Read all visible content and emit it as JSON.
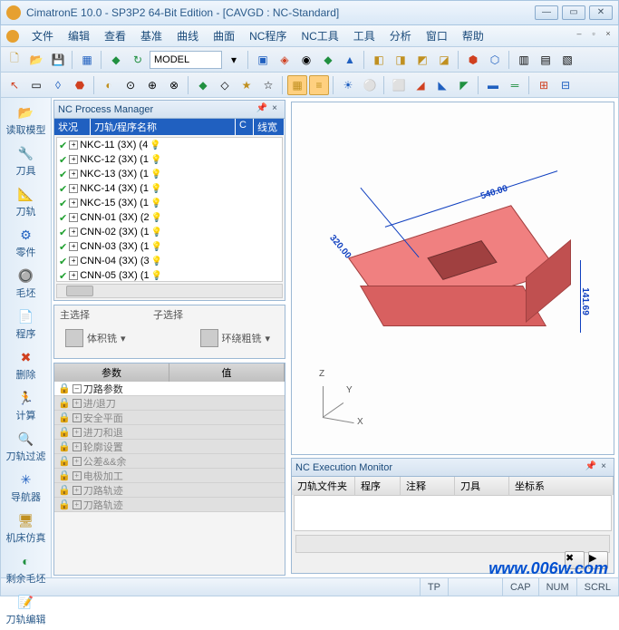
{
  "title": "CimatronE 10.0 - SP3P2 64-Bit Edition - [CAVGD : NC-Standard]",
  "menu": [
    "文件",
    "编辑",
    "查看",
    "基准",
    "曲线",
    "曲面",
    "NC程序",
    "NC工具",
    "工具",
    "分析",
    "窗口",
    "帮助"
  ],
  "combo": "MODEL",
  "vtools": [
    {
      "icon": "📂",
      "label": "读取模型",
      "cls": "ic-c1"
    },
    {
      "icon": "🔧",
      "label": "刀具",
      "cls": "ic-c1"
    },
    {
      "icon": "📐",
      "label": "刀轨",
      "cls": "ic-c1"
    },
    {
      "icon": "⚙",
      "label": "零件",
      "cls": "ic-c3"
    },
    {
      "icon": "🔘",
      "label": "毛坯",
      "cls": "ic-c2"
    },
    {
      "icon": "📄",
      "label": "程序",
      "cls": "ic-c1"
    },
    {
      "icon": "✖",
      "label": "删除",
      "cls": "ic-c2"
    },
    {
      "icon": "🏃",
      "label": "计算",
      "cls": "ic-c1"
    },
    {
      "icon": "🔍",
      "label": "刀轨过滤",
      "cls": "ic-c2"
    },
    {
      "icon": "✳",
      "label": "导航器",
      "cls": "ic-c3"
    },
    {
      "icon": "🖥",
      "label": "机床仿真",
      "cls": "ic-c1"
    },
    {
      "icon": "◐",
      "label": "剩余毛坯",
      "cls": "ic-c4"
    },
    {
      "icon": "📝",
      "label": "刀轨编辑",
      "cls": "ic-c1"
    }
  ],
  "processmgr": {
    "title": "NC Process Manager",
    "cols": [
      "状况",
      "刀轨/程序名称",
      "C",
      "线宽"
    ],
    "rows": [
      {
        "name": "NKC-11 (3X) (4"
      },
      {
        "name": "NKC-12 (3X) (1"
      },
      {
        "name": "NKC-13 (3X) (1"
      },
      {
        "name": "NKC-14 (3X) (1"
      },
      {
        "name": "NKC-15 (3X) (1"
      },
      {
        "name": "CNN-01 (3X) (2"
      },
      {
        "name": "CNN-02 (3X) (1"
      },
      {
        "name": "CNN-03 (3X) (1"
      },
      {
        "name": "CNN-04 (3X) (3"
      },
      {
        "name": "CNN-05 (3X) (1"
      }
    ]
  },
  "selection": {
    "main_lbl": "主选择",
    "sub_lbl": "子选择",
    "main_opt": "体积铣",
    "sub_opt": "环绕粗铣"
  },
  "params": {
    "col1": "参数",
    "col2": "值",
    "rows": [
      "刀路参数",
      "进/退刀",
      "安全平面",
      "进刀和退",
      "轮廓设置",
      "公差&&余",
      "电极加工",
      "刀路轨迹",
      "刀路轨迹"
    ]
  },
  "dims": {
    "w": "540.00",
    "h": "320.00",
    "d": "141.69"
  },
  "axes": {
    "x": "X",
    "y": "Y",
    "z": "Z"
  },
  "execmon": {
    "title": "NC Execution Monitor",
    "cols": [
      "刀轨文件夹",
      "程序",
      "注释",
      "刀具",
      "坐标系"
    ]
  },
  "status": {
    "tp": "TP",
    "cap": "CAP",
    "num": "NUM",
    "scrl": "SCRL"
  },
  "watermark": "www.006w.com",
  "model_colors": {
    "top": "#f08080",
    "front": "#d86060",
    "side": "#c05050",
    "cut": "#a04040",
    "edge": "#a04040",
    "dim": "#1040c0"
  }
}
